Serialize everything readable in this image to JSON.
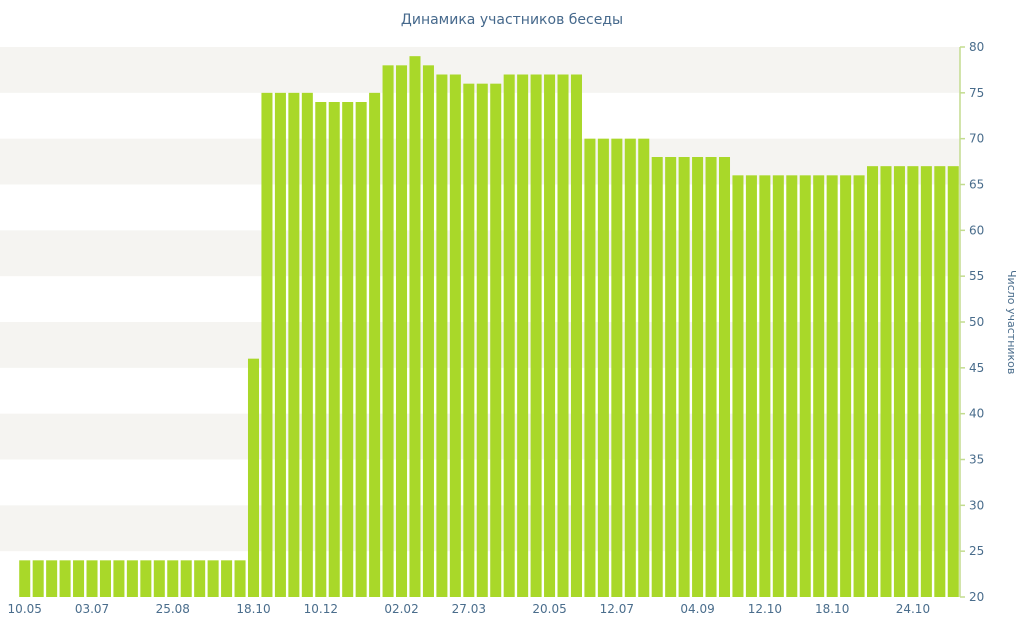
{
  "chart_data": {
    "type": "bar",
    "title": "Динамика участников беседы",
    "ylabel": "Число участников",
    "xlabel": "",
    "ylim": [
      20,
      80
    ],
    "ytick_step": 5,
    "legend": "none",
    "grid": "alternating horizontal bands",
    "bar_color": "#a9d829",
    "band_color": "#f5f4f1",
    "text_color": "#4a6d8c",
    "axis_color": "#c3dc8f",
    "values": [
      24,
      24,
      24,
      24,
      24,
      24,
      24,
      24,
      24,
      24,
      24,
      24,
      24,
      24,
      24,
      24,
      24,
      46,
      75,
      75,
      75,
      75,
      74,
      74,
      74,
      74,
      75,
      78,
      78,
      79,
      78,
      77,
      77,
      76,
      76,
      76,
      77,
      77,
      77,
      77,
      77,
      77,
      70,
      70,
      70,
      70,
      70,
      68,
      68,
      68,
      68,
      68,
      68,
      66,
      66,
      66,
      66,
      66,
      66,
      66,
      66,
      66,
      66,
      67,
      67,
      67,
      67,
      67,
      67,
      67
    ],
    "x_tick_labels": [
      "10.05",
      "03.07",
      "25.08",
      "18.10",
      "10.12",
      "02.02",
      "27.03",
      "20.05",
      "12.07",
      "04.09",
      "12.10",
      "18.10",
      "24.10"
    ],
    "x_tick_indices": [
      0,
      5,
      11,
      17,
      22,
      28,
      33,
      39,
      44,
      50,
      55,
      60,
      66
    ],
    "y_tick_labels": [
      "20",
      "25",
      "30",
      "35",
      "40",
      "45",
      "50",
      "55",
      "60",
      "65",
      "70",
      "75",
      "80"
    ]
  }
}
